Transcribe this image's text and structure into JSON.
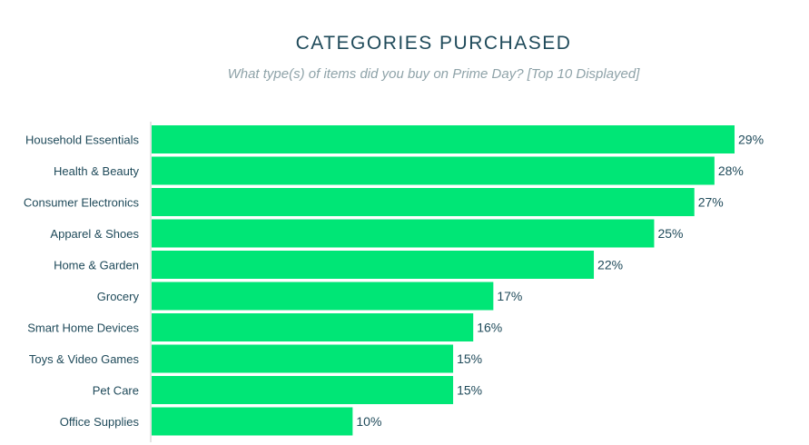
{
  "chart_data": {
    "type": "bar",
    "orientation": "horizontal",
    "title": "CATEGORIES PURCHASED",
    "subtitle": "What type(s) of items did you buy on Prime Day? [Top 10 Displayed]",
    "categories": [
      "Household Essentials",
      "Health & Beauty",
      "Consumer Electronics",
      "Apparel & Shoes",
      "Home & Garden",
      "Grocery",
      "Smart Home Devices",
      "Toys & Video Games",
      "Pet Care",
      "Office Supplies"
    ],
    "values": [
      29,
      28,
      27,
      25,
      22,
      17,
      16,
      15,
      15,
      10
    ],
    "value_labels": [
      "29%",
      "28%",
      "27%",
      "25%",
      "22%",
      "17%",
      "16%",
      "15%",
      "15%",
      "10%"
    ],
    "unit": "%",
    "xlim": [
      0,
      29
    ],
    "grid": false,
    "colors": {
      "bar": "#00e676",
      "text": "#1f4a5a",
      "subtitle": "#8fa3a9",
      "axis": "#c8c8c8"
    }
  }
}
